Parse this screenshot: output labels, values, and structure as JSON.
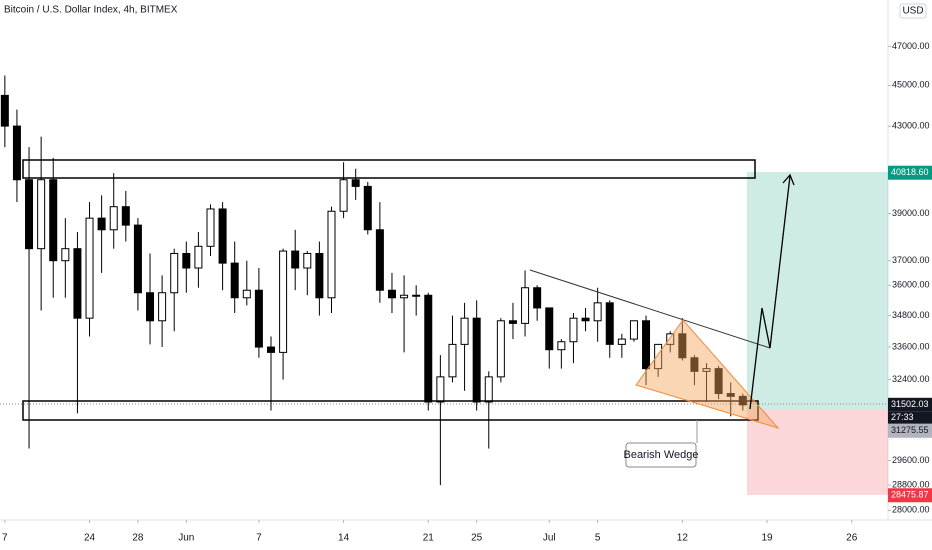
{
  "chart_data": {
    "type": "candlestick",
    "title": "Bitcoin / U.S. Dollar Index, 4h, BITMEX",
    "currency": "USD",
    "x": [
      17,
      18,
      19,
      20,
      21,
      22,
      23,
      24,
      25,
      26,
      27,
      28,
      29,
      30,
      31,
      32,
      33,
      34,
      35,
      36,
      37,
      38,
      39,
      40,
      41,
      42,
      43,
      44,
      45,
      46,
      47,
      48,
      49,
      50,
      51,
      52,
      53,
      54,
      55,
      56,
      57,
      58,
      59,
      60,
      61,
      62,
      63,
      64,
      65,
      66,
      67,
      68,
      69,
      70,
      71,
      72,
      73,
      74,
      75,
      76,
      77,
      78
    ],
    "open": [
      44500,
      43000,
      40500,
      37500,
      40500,
      37000,
      37500,
      34700,
      38800,
      38300,
      39300,
      38500,
      35700,
      34600,
      35700,
      37300,
      36700,
      37600,
      39200,
      36900,
      35500,
      35800,
      33600,
      33400,
      37400,
      36700,
      37300,
      35500,
      39100,
      40500,
      40200,
      38300,
      35800,
      35500,
      35600,
      35600,
      31600,
      32500,
      33700,
      34700,
      31600,
      32500,
      34600,
      34500,
      35900,
      35100,
      33500,
      33800,
      34700,
      34600,
      35300,
      33700,
      33900,
      34600,
      32800,
      33700,
      34100,
      33200,
      32700,
      32800,
      31900,
      31800
    ],
    "high": [
      45500,
      43800,
      42000,
      42500,
      41500,
      38800,
      38200,
      39500,
      39800,
      40800,
      40000,
      38800,
      37300,
      36400,
      37500,
      37800,
      38200,
      39400,
      39500,
      37800,
      37000,
      36700,
      34000,
      37500,
      38300,
      37400,
      37800,
      39300,
      41300,
      41000,
      40400,
      39500,
      36500,
      36400,
      36000,
      35700,
      33300,
      34800,
      35300,
      35400,
      32700,
      34700,
      35300,
      36600,
      36000,
      35100,
      33900,
      34900,
      35100,
      35900,
      35400,
      34100,
      34600,
      34800,
      33700,
      34200,
      34700,
      33300,
      33000,
      32900,
      32300,
      31900
    ],
    "low": [
      42000,
      39500,
      30000,
      35000,
      35500,
      35500,
      31200,
      34000,
      36500,
      37500,
      37800,
      35000,
      33700,
      33600,
      34200,
      35700,
      35900,
      37200,
      35800,
      34900,
      35200,
      33200,
      31300,
      32400,
      35800,
      35600,
      34800,
      34900,
      38800,
      39600,
      38100,
      35300,
      34900,
      33400,
      34800,
      31300,
      28800,
      32300,
      32000,
      31300,
      30000,
      32300,
      33900,
      34000,
      34600,
      32800,
      32800,
      33000,
      34200,
      33800,
      33200,
      33200,
      33800,
      32200,
      32500,
      33400,
      33100,
      32200,
      31600,
      31700,
      31100,
      31300
    ],
    "close": [
      43000,
      40500,
      37500,
      40500,
      37000,
      37500,
      34700,
      38800,
      38300,
      39300,
      38500,
      35700,
      34600,
      35700,
      37300,
      36700,
      37600,
      39200,
      36900,
      35500,
      35800,
      33600,
      33400,
      37400,
      36700,
      37300,
      35500,
      39100,
      40500,
      40200,
      38300,
      35800,
      35500,
      35600,
      35600,
      31600,
      32500,
      33700,
      34700,
      31600,
      32500,
      34600,
      34500,
      35900,
      35100,
      33500,
      33800,
      34700,
      34600,
      35300,
      33700,
      33900,
      34600,
      32800,
      33700,
      34100,
      33200,
      32700,
      32800,
      31900,
      31800,
      31500
    ],
    "xlim": [
      16.6,
      90
    ],
    "xticks": [
      {
        "value": 17,
        "label": "7"
      },
      24,
      28,
      {
        "value": 32,
        "label": "Jun"
      },
      {
        "value": 38,
        "label": "7"
      },
      {
        "value": 45,
        "label": "14"
      },
      {
        "value": 52,
        "label": "21"
      },
      {
        "value": 56,
        "label": "25"
      },
      {
        "value": 62,
        "label": "Jul"
      },
      {
        "value": 66,
        "label": "5"
      },
      {
        "value": 73,
        "label": "12"
      },
      {
        "value": 80,
        "label": "19"
      },
      {
        "value": 87,
        "label": "26"
      }
    ],
    "ylim": [
      27700,
      49500
    ],
    "log_scale": true,
    "yticks": [
      {
        "value": 47000,
        "label": "47000.00"
      },
      {
        "value": 45000,
        "label": "45000.00"
      },
      {
        "value": 43000,
        "label": "43000.00"
      },
      {
        "value": 39000,
        "label": "39000.00"
      },
      {
        "value": 37000,
        "label": "37000.00"
      },
      {
        "value": 36000,
        "label": "36000.00"
      },
      {
        "value": 34800,
        "label": "34800.00"
      },
      {
        "value": 33600,
        "label": "33600.00"
      },
      {
        "value": 32400,
        "label": "32400.00"
      },
      {
        "value": 29600,
        "label": "29600.00"
      },
      {
        "value": 28800,
        "label": "28800.00"
      },
      {
        "value": 28000,
        "label": "28000.00"
      }
    ],
    "price_labels": [
      {
        "value": 40818.6,
        "label": "40818.60",
        "color": "#089981"
      },
      {
        "value": 31502.03,
        "label": "31502.03",
        "color": "#131722"
      },
      {
        "value": 31275.55,
        "label": "31275.55",
        "color": "#b2b5be"
      },
      {
        "value": 28475.87,
        "label": "28475.87",
        "color": "#f23645"
      }
    ],
    "countdown": "27:33",
    "annotation": "Bearish Wedge"
  }
}
